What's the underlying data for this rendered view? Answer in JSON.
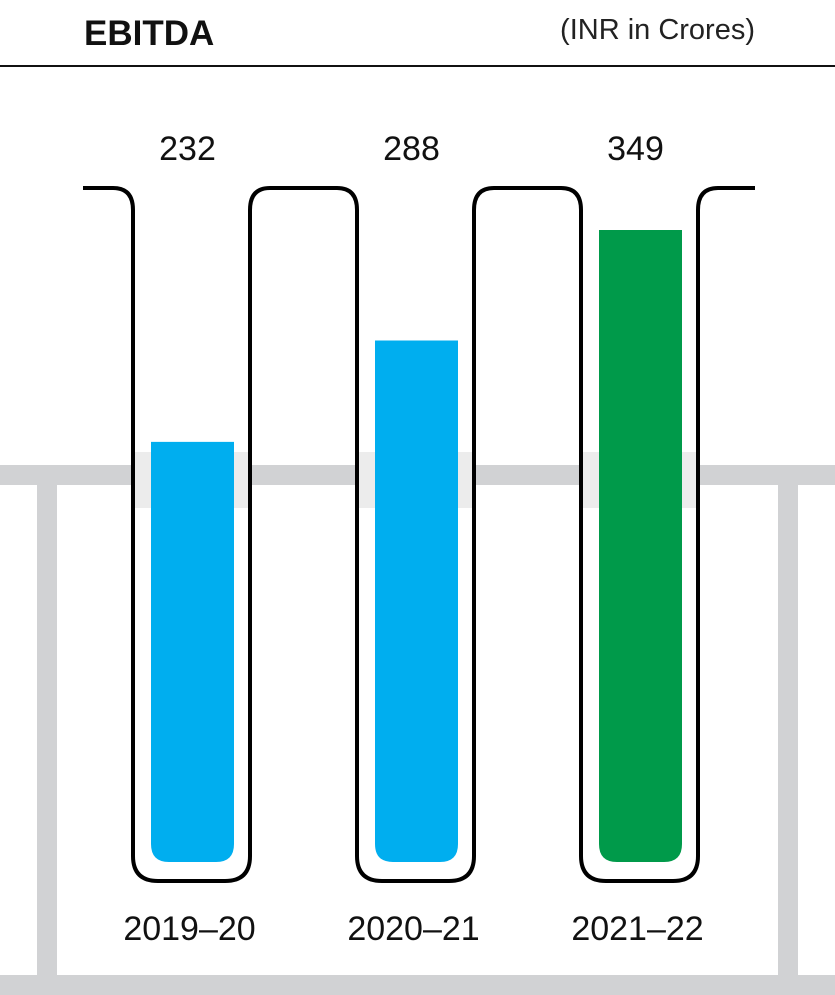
{
  "chart_data": {
    "type": "bar",
    "title": "EBITDA",
    "unit_label": "(INR in Crores)",
    "categories": [
      "2019–20",
      "2020–21",
      "2021–22"
    ],
    "values": [
      232,
      288,
      349
    ],
    "data_labels": [
      "232",
      "288",
      "349"
    ],
    "colors": [
      "#00aeef",
      "#00aeef",
      "#009a4a"
    ],
    "ylim": [
      0,
      380
    ],
    "grid": false,
    "style": "test-tubes"
  }
}
